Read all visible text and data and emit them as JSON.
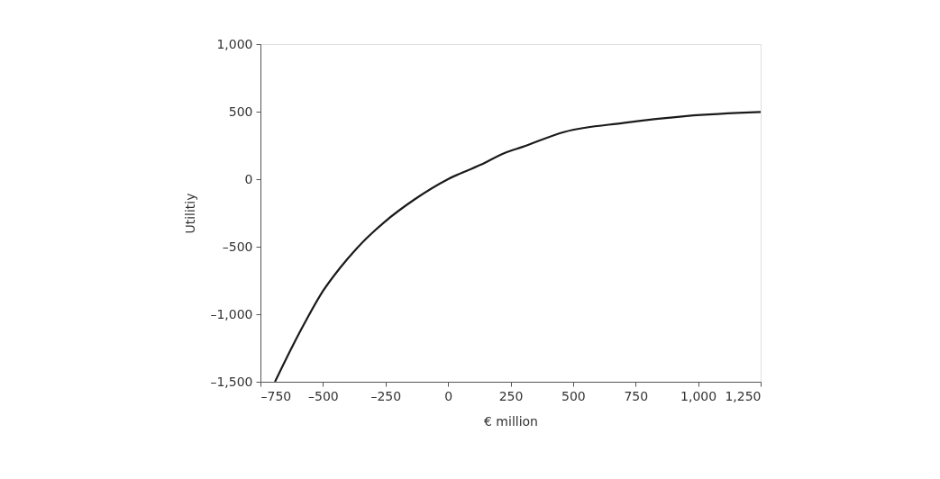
{
  "chart_data": {
    "type": "line",
    "xlabel": "€ million",
    "ylabel": "Utilitiy",
    "x": [
      -692,
      -626,
      -566,
      -500,
      -434,
      -362,
      -254,
      -134,
      0,
      130,
      226,
      298,
      466,
      706,
      945,
      1250
    ],
    "series": [
      {
        "color": "#1a1a1a",
        "values": [
          -1500,
          -1251,
          -1040,
          -828,
          -662,
          -506,
          -317,
          -150,
          0,
          106,
          194,
          239,
          350,
          417,
          466,
          497
        ]
      }
    ],
    "xlim": [
      -750,
      1250
    ],
    "xticks": [
      {
        "value": -750,
        "label": "–750"
      },
      {
        "value": -500,
        "label": "–500"
      },
      {
        "value": -250,
        "label": "–250"
      },
      0,
      250,
      500,
      750,
      {
        "value": 1000,
        "label": "1,000"
      },
      {
        "value": 1250,
        "label": "1,250"
      }
    ],
    "ylim": [
      -1500,
      1000
    ],
    "yticks": [
      {
        "value": -1500,
        "label": "–1,500"
      },
      {
        "value": -1000,
        "label": "–1,000"
      },
      {
        "value": -500,
        "label": "–500"
      },
      0,
      500,
      {
        "value": 1000,
        "label": "1,000"
      }
    ],
    "grid": false,
    "legend": false,
    "marker": "none",
    "line_style": "solid"
  }
}
